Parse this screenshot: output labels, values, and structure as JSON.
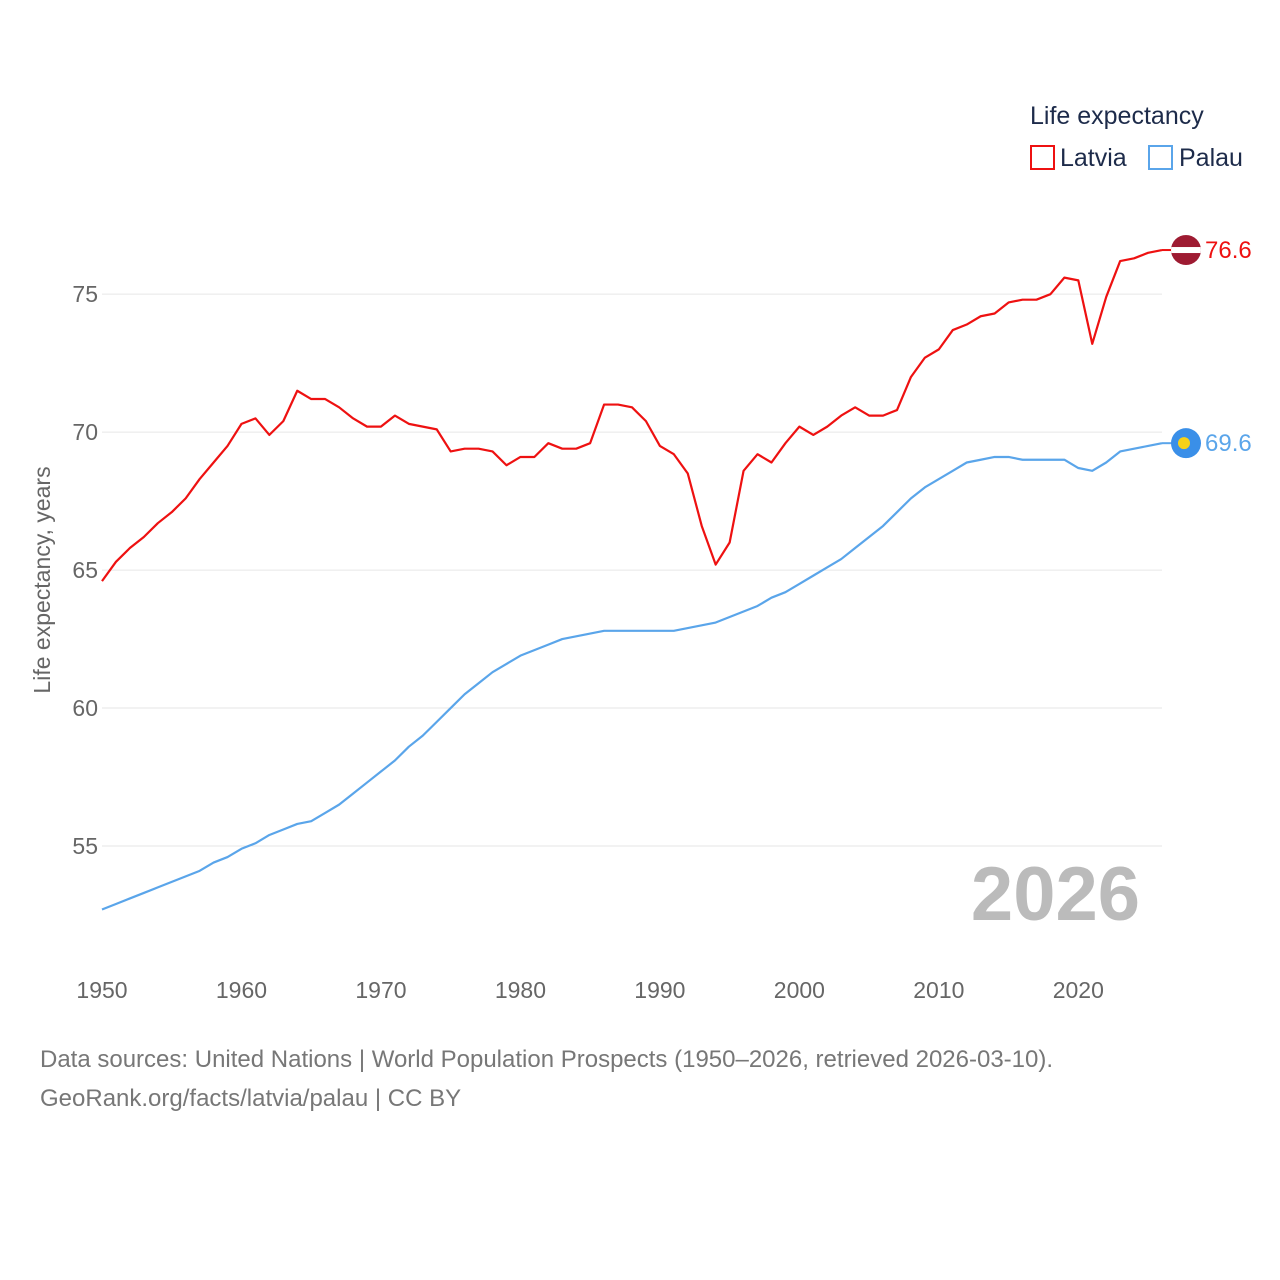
{
  "chart_data": {
    "type": "line",
    "title": "",
    "xlabel": "",
    "ylabel": "Life expectancy, years",
    "xlim": [
      1950,
      2026
    ],
    "ylim": [
      52.5,
      77
    ],
    "grid": true,
    "yticks": [
      55,
      60,
      65,
      70,
      75
    ],
    "xticks": [
      1950,
      1960,
      1970,
      1980,
      1990,
      2000,
      2010,
      2020
    ],
    "legend": {
      "title": "Life expectancy",
      "placement": "top-right"
    },
    "year_label": "2026",
    "x": [
      1950,
      1951,
      1952,
      1953,
      1954,
      1955,
      1956,
      1957,
      1958,
      1959,
      1960,
      1961,
      1962,
      1963,
      1964,
      1965,
      1966,
      1967,
      1968,
      1969,
      1970,
      1971,
      1972,
      1973,
      1974,
      1975,
      1976,
      1977,
      1978,
      1979,
      1980,
      1981,
      1982,
      1983,
      1984,
      1985,
      1986,
      1987,
      1988,
      1989,
      1990,
      1991,
      1992,
      1993,
      1994,
      1995,
      1996,
      1997,
      1998,
      1999,
      2000,
      2001,
      2002,
      2003,
      2004,
      2005,
      2006,
      2007,
      2008,
      2009,
      2010,
      2011,
      2012,
      2013,
      2014,
      2015,
      2016,
      2017,
      2018,
      2019,
      2020,
      2021,
      2022,
      2023,
      2024,
      2025,
      2026
    ],
    "series": [
      {
        "name": "Latvia",
        "color": "#ee1111",
        "end_label": "76.6",
        "values": [
          64.6,
          65.3,
          65.8,
          66.2,
          66.7,
          67.1,
          67.6,
          68.3,
          68.9,
          69.5,
          70.3,
          70.5,
          69.9,
          70.4,
          71.5,
          71.2,
          71.2,
          70.9,
          70.5,
          70.2,
          70.2,
          70.6,
          70.3,
          70.2,
          70.1,
          69.3,
          69.4,
          69.4,
          69.3,
          68.8,
          69.1,
          69.1,
          69.6,
          69.4,
          69.4,
          69.6,
          71.0,
          71.0,
          70.9,
          70.4,
          69.5,
          69.2,
          68.5,
          66.6,
          65.2,
          66.0,
          68.6,
          69.2,
          68.9,
          69.6,
          70.2,
          69.9,
          70.2,
          70.6,
          70.9,
          70.6,
          70.6,
          70.8,
          72.0,
          72.7,
          73.0,
          73.7,
          73.9,
          74.2,
          74.3,
          74.7,
          74.8,
          74.8,
          75.0,
          75.6,
          75.5,
          73.2,
          74.9,
          76.2,
          76.3,
          76.5,
          76.6
        ]
      },
      {
        "name": "Palau",
        "color": "#5aa5ea",
        "end_label": "69.6",
        "values": [
          52.7,
          52.9,
          53.1,
          53.3,
          53.5,
          53.7,
          53.9,
          54.1,
          54.4,
          54.6,
          54.9,
          55.1,
          55.4,
          55.6,
          55.8,
          55.9,
          56.2,
          56.5,
          56.9,
          57.3,
          57.7,
          58.1,
          58.6,
          59.0,
          59.5,
          60.0,
          60.5,
          60.9,
          61.3,
          61.6,
          61.9,
          62.1,
          62.3,
          62.5,
          62.6,
          62.7,
          62.8,
          62.8,
          62.8,
          62.8,
          62.8,
          62.8,
          62.9,
          63.0,
          63.1,
          63.3,
          63.5,
          63.7,
          64.0,
          64.2,
          64.5,
          64.8,
          65.1,
          65.4,
          65.8,
          66.2,
          66.6,
          67.1,
          67.6,
          68.0,
          68.3,
          68.6,
          68.9,
          69.0,
          69.1,
          69.1,
          69.0,
          69.0,
          69.0,
          69.0,
          68.7,
          68.6,
          68.9,
          69.3,
          69.4,
          69.5,
          69.6
        ]
      }
    ]
  },
  "footer": {
    "line1": "Data sources: United Nations | World Population Prospects (1950–2026, retrieved 2026-03-10).",
    "line2": "GeoRank.org/facts/latvia/palau | CC BY"
  }
}
